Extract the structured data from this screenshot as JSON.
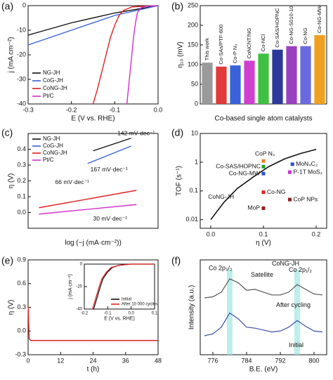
{
  "chart_data": [
    {
      "panel_label": "(a)",
      "type": "line",
      "xlabel": "E (V vs. RHE)",
      "ylabel": "j (mA cm⁻²)",
      "xlim": [
        -0.3,
        0
      ],
      "xticks": [
        -0.3,
        -0.2,
        -0.1,
        {
          "value": 0,
          "label": "0.0"
        }
      ],
      "ylim": [
        -40,
        0
      ],
      "yticks": [
        -40,
        -30,
        -20,
        -10,
        0
      ],
      "legend": "lower left",
      "series": [
        {
          "name": "NG-JH",
          "color": "#111111",
          "x": [
            -0.3,
            -0.2,
            -0.1,
            0
          ],
          "values": [
            -12,
            -7,
            -3,
            0
          ]
        },
        {
          "name": "CoG-JH",
          "color": "#3a62d8",
          "x": [
            -0.3,
            -0.2,
            -0.1,
            0
          ],
          "values": [
            -16,
            -10,
            -4,
            0
          ]
        },
        {
          "name": "CoNG-JH",
          "color": "#e02020",
          "x": [
            -0.15,
            -0.14,
            -0.13,
            -0.12,
            -0.11,
            -0.1,
            -0.09,
            -0.08,
            -0.06,
            0
          ],
          "values": [
            -40,
            -34,
            -27,
            -20,
            -13,
            -8,
            -4,
            -2,
            -0.5,
            0
          ]
        },
        {
          "name": "Pt/C",
          "color": "#d030d0",
          "x": [
            -0.072,
            -0.068,
            -0.064,
            -0.06,
            -0.056,
            -0.052,
            -0.048,
            -0.04,
            -0.03,
            0
          ],
          "values": [
            -40,
            -33,
            -26,
            -19,
            -12,
            -7,
            -3,
            -1,
            -0.3,
            0
          ]
        }
      ]
    },
    {
      "panel_label": "(b)",
      "type": "bar",
      "xlabel": "Co-based single atom catalysts",
      "ylabel": "η₁₀ (mV)",
      "ylim": [
        0,
        250
      ],
      "yticks": [
        0,
        50,
        100,
        150,
        200,
        250
      ],
      "categories": [
        "This work",
        "Co-SAs/PTF-600",
        "Co-P N₃",
        "CoNCNT/NG",
        "Co-NCl",
        "Co-SAS/HOPNC",
        "Co-NG-S010-10",
        "Co-NG",
        "Co-NG-MW"
      ],
      "values": [
        105,
        95,
        98,
        110,
        128,
        138,
        147,
        147,
        175
      ],
      "colors": [
        "#9a9a9a",
        "#e03a3a",
        "#3a62d8",
        "#d040d0",
        "#40c040",
        "#2a3a9a",
        "#9a40c0",
        "#6a6ae0",
        "#f0a020"
      ]
    },
    {
      "panel_label": "(c)",
      "type": "line",
      "xlabel": "log (−j (mA·cm⁻²))",
      "ylabel": "η (V)",
      "xlim": [
        -0.8,
        1.6
      ],
      "ylim": [
        -0.1,
        0.5
      ],
      "yticks": [
        {
          "value": 0,
          "label": "0.0"
        },
        0.1,
        0.2,
        0.3,
        0.4
      ],
      "legend": "upper left",
      "annotations": [
        "142 mV·dec⁻¹",
        "167 mV·dec⁻¹",
        "66 mV·dec⁻¹",
        "30 mV·dec⁻¹"
      ],
      "series": [
        {
          "name": "NG-JH",
          "color": "#111111",
          "x": [
            0.4,
            1.1
          ],
          "values": [
            0.39,
            0.47
          ]
        },
        {
          "name": "CoG-JH",
          "color": "#3a62d8",
          "x": [
            0.3,
            1.1
          ],
          "values": [
            0.31,
            0.42
          ]
        },
        {
          "name": "CoNG-JH",
          "color": "#e02020",
          "x": [
            -0.6,
            1.2
          ],
          "values": [
            0.03,
            0.14
          ]
        },
        {
          "name": "Pt/C",
          "color": "#d030d0",
          "x": [
            -0.6,
            1.2
          ],
          "values": [
            -0.01,
            0.05
          ]
        }
      ]
    },
    {
      "panel_label": "(d)",
      "type": "scatter",
      "xlabel": "η (V)",
      "ylabel": "TOF (s⁻¹)",
      "ylog": true,
      "xlim": [
        -0.02,
        0.22
      ],
      "xticks": [
        {
          "value": 0,
          "label": "0.0"
        },
        0.1,
        0.2
      ],
      "ylim": [
        0.005,
        10
      ],
      "yticks": [
        0.01,
        0.1,
        1,
        10
      ],
      "line": {
        "name": "CoNG-JH",
        "color": "#111111",
        "x": [
          0,
          0.025,
          0.05,
          0.08,
          0.11,
          0.14,
          0.17,
          0.2
        ],
        "values": [
          0.01,
          0.04,
          0.12,
          0.3,
          0.7,
          1.3,
          2.0,
          2.8
        ]
      },
      "points": [
        {
          "name": "CoP N₃",
          "color": "#f08020",
          "x": 0.1,
          "y": 1.1
        },
        {
          "name": "Co-SAS/HOPNC",
          "color": "#20a020",
          "x": 0.1,
          "y": 0.7
        },
        {
          "name": "Co-NG-MW",
          "color": "#3050d0",
          "x": 0.1,
          "y": 0.4
        },
        {
          "name": "MoN₄C₂",
          "color": "#3050d0",
          "x": 0.155,
          "y": 0.85
        },
        {
          "name": "P-1T MoS₂",
          "color": "#d030d0",
          "x": 0.15,
          "y": 0.45
        },
        {
          "name": "Co-NG",
          "color": "#e02020",
          "x": 0.1,
          "y": 0.09
        },
        {
          "name": "CoP NPs",
          "color": "#902020",
          "x": 0.15,
          "y": 0.05
        },
        {
          "name": "MoP",
          "color": "#902020",
          "x": 0.1,
          "y": 0.025
        }
      ]
    },
    {
      "panel_label": "(e)",
      "type": "line",
      "xlabel": "t (h)",
      "ylabel": "η (V)",
      "xlim": [
        0,
        48
      ],
      "xticks": [
        0,
        12,
        24,
        36,
        48
      ],
      "ylim": [
        -0.3,
        0.9
      ],
      "yticks": [
        -0.3,
        {
          "value": 0,
          "label": "0.0"
        },
        0.3,
        0.6,
        0.9
      ],
      "series": [
        {
          "color": "#e02020",
          "x": [
            0,
            0.05,
            0.4,
            1,
            48
          ],
          "values": [
            0.3,
            0.3,
            -0.1,
            -0.12,
            -0.12
          ]
        }
      ],
      "inset": {
        "xlabel": "E (V vs. RHE)",
        "ylabel": "j (mA cm⁻²)",
        "xlim": [
          -0.2,
          0.1
        ],
        "xticks": [
          -0.2,
          -0.1,
          {
            "value": 0,
            "label": "0.0"
          },
          0.1
        ],
        "ylim": [
          -40,
          0
        ],
        "yticks": [
          -40,
          -20,
          0
        ],
        "series": [
          {
            "name": "Initial",
            "color": "#111111",
            "x": [
              -0.16,
              -0.15,
              -0.14,
              -0.13,
              -0.12,
              -0.1,
              -0.08,
              -0.05,
              0,
              0.1
            ],
            "values": [
              -40,
              -33,
              -26,
              -19,
              -13,
              -7,
              -3,
              -1,
              0,
              0
            ]
          },
          {
            "name": "After 10 000 cycles",
            "color": "#e02020",
            "x": [
              -0.165,
              -0.155,
              -0.145,
              -0.135,
              -0.125,
              -0.105,
              -0.085,
              -0.05,
              0,
              0.1
            ],
            "values": [
              -40,
              -33,
              -26,
              -19,
              -13,
              -7,
              -3,
              -1,
              0,
              0
            ]
          }
        ]
      }
    },
    {
      "panel_label": "(f)",
      "type": "spectrum",
      "xlabel": "B.E. (eV)",
      "ylabel": "Intensity (a.u.)",
      "xlim": [
        773,
        803
      ],
      "xticks": [
        776,
        784,
        792,
        800
      ],
      "ylim": [
        0,
        10
      ],
      "highlight_x": [
        780,
        796
      ],
      "labels": [
        "Co 2p₃/₂",
        "Satellite",
        "Co 2p₁/₂",
        "CoNG-JH"
      ],
      "series": [
        {
          "name": "After cycling",
          "color": "#555555",
          "x": [
            774,
            776,
            778,
            780,
            782,
            784,
            786,
            788,
            790,
            792,
            794,
            796,
            798,
            800,
            802
          ],
          "values": [
            6.0,
            6.1,
            6.6,
            8.0,
            7.6,
            6.8,
            6.9,
            6.6,
            6.3,
            6.3,
            6.6,
            7.4,
            6.9,
            6.4,
            6.3
          ]
        },
        {
          "name": "Initial",
          "color": "#3a50b0",
          "x": [
            774,
            776,
            778,
            780,
            782,
            784,
            786,
            788,
            790,
            792,
            794,
            796,
            798,
            800,
            802
          ],
          "values": [
            2.0,
            2.2,
            2.9,
            4.4,
            3.8,
            2.9,
            2.8,
            2.6,
            2.4,
            2.5,
            2.9,
            3.6,
            3.0,
            2.5,
            2.4
          ]
        }
      ]
    }
  ]
}
